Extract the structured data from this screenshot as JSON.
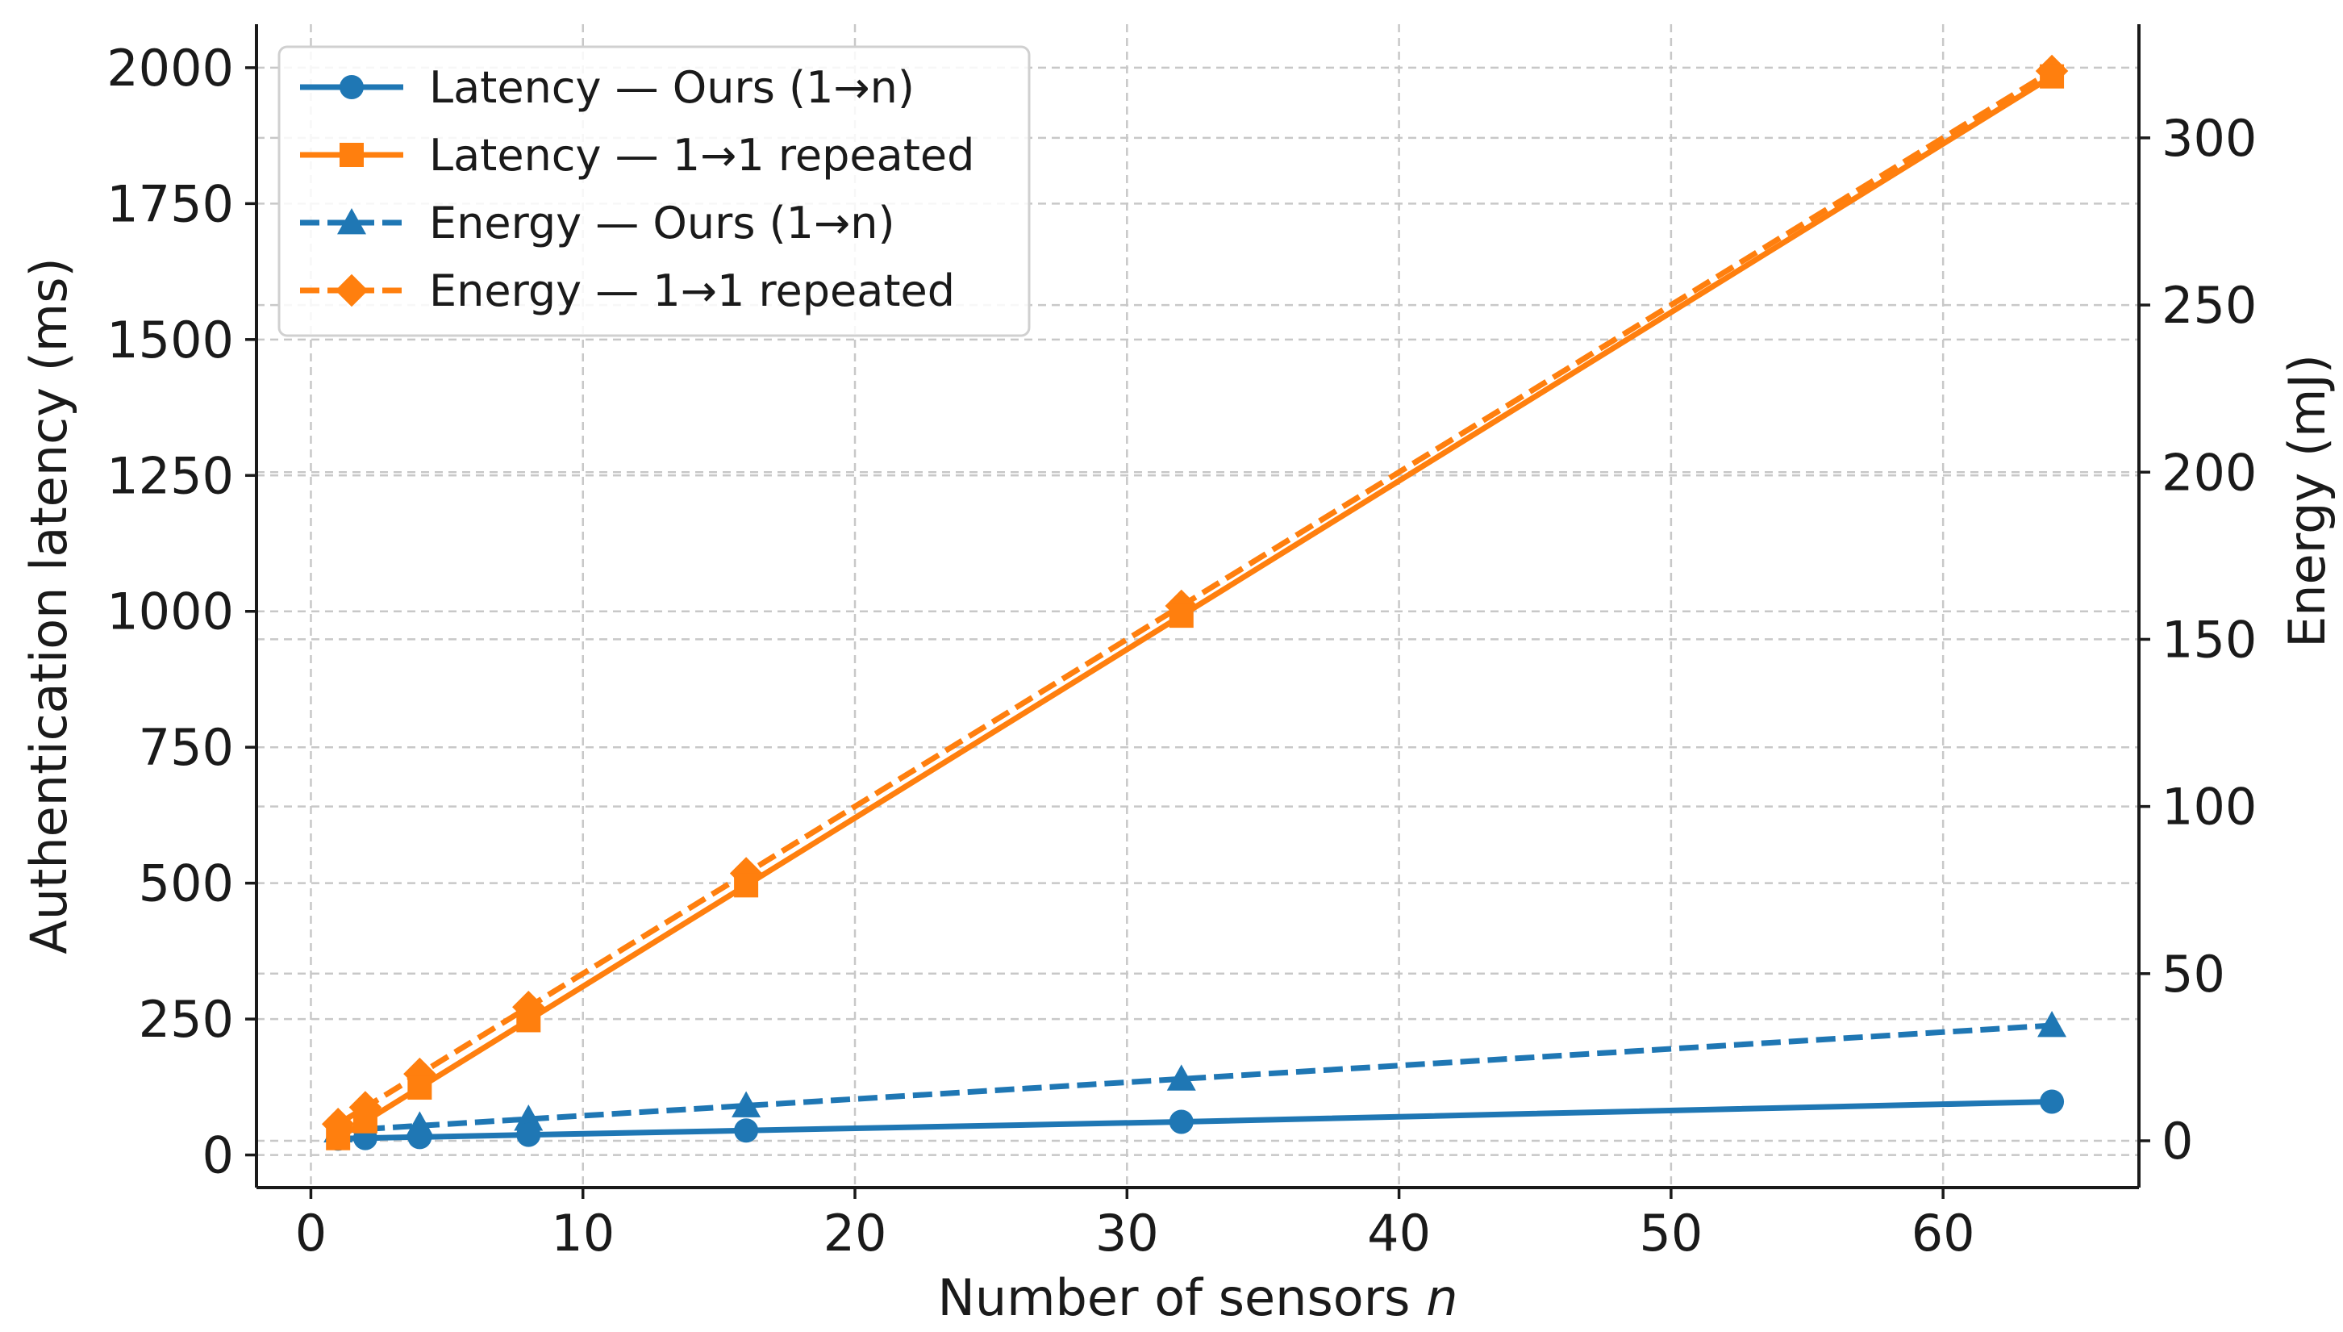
{
  "chart_data": {
    "type": "line",
    "title": "",
    "xlabel": "Number of sensors",
    "xlabel_var": "n",
    "ylabel_left": "Authentication latency (ms)",
    "ylabel_right": "Energy (mJ)",
    "x": [
      1,
      2,
      4,
      8,
      16,
      32,
      64
    ],
    "xlim": [
      -2,
      67.2
    ],
    "ylim_left": [
      -60,
      2080
    ],
    "ylim_right": [
      -14,
      334
    ],
    "xticks": [
      0,
      10,
      20,
      30,
      40,
      50,
      60
    ],
    "yticks_left": [
      0,
      250,
      500,
      750,
      1000,
      1250,
      1500,
      1750,
      2000
    ],
    "yticks_right": [
      0,
      50,
      100,
      150,
      200,
      250,
      300
    ],
    "grid": true,
    "legend_position": "top-left",
    "series": [
      {
        "name": "Latency — Ours (1→n)",
        "axis": "left",
        "color": "#1f77b4",
        "style": "solid",
        "marker": "circle",
        "values": [
          30,
          31,
          33,
          37,
          45,
          61,
          98
        ]
      },
      {
        "name": "Latency — 1→1 repeated",
        "axis": "left",
        "color": "#ff7f0e",
        "style": "solid",
        "marker": "square",
        "values": [
          31,
          62,
          124,
          248,
          496,
          992,
          1984
        ]
      },
      {
        "name": "Energy — Ours (1→n)",
        "axis": "right",
        "color": "#1f77b4",
        "style": "dashed",
        "marker": "triangle",
        "values": [
          3,
          3.5,
          4.5,
          6.5,
          10.5,
          18.5,
          34.5
        ]
      },
      {
        "name": "Energy — 1→1 repeated",
        "axis": "right",
        "color": "#ff7f0e",
        "style": "dashed",
        "marker": "diamond",
        "values": [
          5,
          10,
          20,
          40,
          80,
          160,
          320
        ]
      }
    ]
  }
}
